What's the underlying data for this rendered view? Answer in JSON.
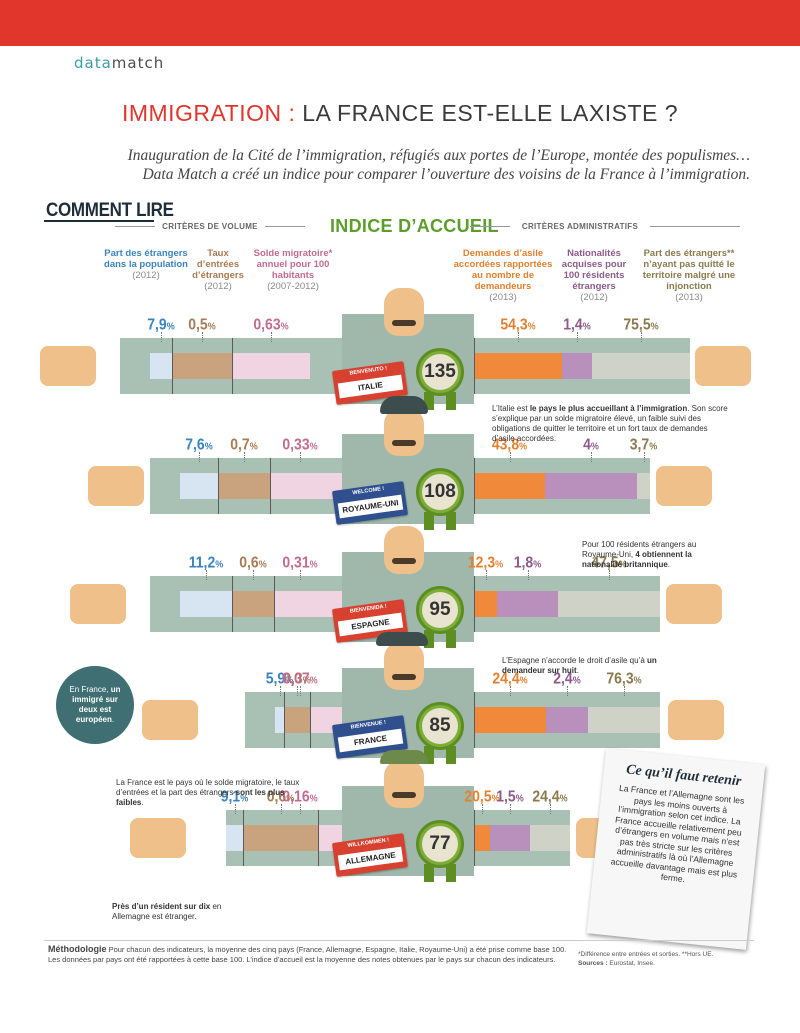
{
  "brand": {
    "part1": "data",
    "part2": "match"
  },
  "header": {
    "title_red": "IMMIGRATION :",
    "title_rest": " LA FRANCE EST-ELLE LAXISTE ?",
    "subtitle_line1": "Inauguration de la Cité de l’immigration, réfugiés aux portes de l’Europe, montée des populismes…",
    "subtitle_line2": "Data Match a créé un indice pour comparer l’ouverture des voisins de la France à l’immigration."
  },
  "legend": {
    "comment_lire": "COMMENT LIRE",
    "criteres_volume": "CRITÈRES DE VOLUME",
    "criteres_admin": "CRITÈRES ADMINISTRATIFS",
    "indice_title": "INDICE D’ACCUEIL"
  },
  "indicators": [
    {
      "label": "Part des étrangers dans la population",
      "year": "(2012)",
      "color": "#3b83c0"
    },
    {
      "label": "Taux d’entrées d’étrangers",
      "year": "(2012)",
      "color": "#a87b52"
    },
    {
      "label": "Solde migratoire* annuel pour 100 habitants",
      "year": "(2007-2012)",
      "color": "#c26b8e"
    },
    {
      "label": "Demandes d’asile accordées rapportées au nombre de demandeurs",
      "year": "(2013)",
      "color": "#e57f2e"
    },
    {
      "label": "Nationalités acquises pour 100 résidents étrangers",
      "year": "(2012)",
      "color": "#8d5a8a"
    },
    {
      "label": "Part des étrangers** n’ayant pas quitté le territoire malgré une injonction",
      "year": "(2013)",
      "color": "#8a7a4d"
    }
  ],
  "chart_data": {
    "type": "bar",
    "categories": [
      "Part des étrangers dans la population",
      "Taux d’entrées d’étrangers",
      "Solde migratoire annuel pour 100 habitants",
      "Demandes d’asile accordées rapportées au nombre de demandeurs",
      "Nationalités acquises pour 100 résidents étrangers",
      "Part des étrangers n’ayant pas quitté le territoire malgré une injonction"
    ],
    "units": "%",
    "series": [
      {
        "name": "ITALIE",
        "greeting": "BENVENUTO !",
        "index": 135,
        "values_text": [
          "7,9",
          "0,5",
          "0,63",
          "54,3",
          "1,4",
          "75,5"
        ],
        "values": [
          7.9,
          0.5,
          0.63,
          54.3,
          1.4,
          75.5
        ],
        "tag_color": "#d8402f"
      },
      {
        "name": "ROYAUME-UNI",
        "greeting": "WELCOME !",
        "index": 108,
        "values_text": [
          "7,6",
          "0,7",
          "0,33",
          "43,8",
          "4",
          "3,7"
        ],
        "values": [
          7.6,
          0.7,
          0.33,
          43.8,
          4,
          3.7
        ],
        "tag_color": "#2f4f8f"
      },
      {
        "name": "ESPAGNE",
        "greeting": "BIENVENIDA !",
        "index": 95,
        "values_text": [
          "11,2",
          "0,6",
          "0,31",
          "12,3",
          "1,8",
          "47,5"
        ],
        "values": [
          11.2,
          0.6,
          0.31,
          12.3,
          1.8,
          47.5
        ],
        "tag_color": "#d8402f"
      },
      {
        "name": "FRANCE",
        "greeting": "BIENVENUE !",
        "index": 85,
        "values_text": [
          "5,9",
          "0,3",
          "0,07",
          "24,4",
          "2,4",
          "76,3"
        ],
        "values": [
          5.9,
          0.3,
          0.07,
          24.4,
          2.4,
          76.3
        ],
        "tag_color": "#2f4f8f"
      },
      {
        "name": "ALLEMAGNE",
        "greeting": "WILLKOMMEN !",
        "index": 77,
        "values_text": [
          "9,1",
          "0,6",
          "0,16",
          "20,5",
          "1,5",
          "24,4"
        ],
        "values": [
          9.1,
          0.6,
          0.16,
          20.5,
          1.5,
          24.4
        ],
        "tag_color": "#d8402f"
      }
    ],
    "pct_sign": "%"
  },
  "notes": {
    "italie_pre": "L’Italie est ",
    "italie_bold": "le pays le plus accueillant à l’immigration",
    "italie_post": ". Son score s’explique par un solde migratoire élevé, un faible suivi des obligations de quitter le territoire et un fort taux de demandes d’asile accordées.",
    "ru_pre": "Pour 100 résidents étrangers au Royaume-Uni, ",
    "ru_bold": "4 obtiennent la nationalité britannique",
    "ru_post": ".",
    "espagne_pre": "L’Espagne n’accorde le droit d’asile qu’à ",
    "espagne_bold": "un demandeur sur huit",
    "espagne_post": ".",
    "circle_pre": "En France, ",
    "circle_bold": "un immigré sur deux est européen",
    "circle_post": ".",
    "france_pre": "La France est le pays où le solde migratoire, le taux d’entrées et la part des étrangers ",
    "france_bold": "sont les plus faibles",
    "france_post": ".",
    "allemagne_bold": "Près d’un résident sur dix",
    "allemagne_post": " en Allemagne est étranger."
  },
  "retenir": {
    "title": "Ce qu’il faut retenir",
    "text": "La France et l’Allemagne sont les pays les moins ouverts à l’immigration selon cet indice. La France accueille relativement peu d’étrangers en volume mais n’est pas très stricte sur les critères administratifs là où l’Allemagne accueille davantage mais est plus ferme."
  },
  "footer": {
    "methodo_label": "Méthodologie",
    "methodo_text": " Pour chacun des indicateurs, la moyenne des cinq pays (France, Allemagne, Espagne, Italie, Royaume-Uni) a été prise comme base 100. Les données par pays ont été rapportées à cette base 100. L’indice d’accueil est la moyenne des notes obtenues par le pays sur chacun des indicateurs.",
    "footnote": "*Différence entre entrées et sorties. **Hors UE.",
    "sources_label": "Sources :",
    "sources_text": " Eurostat, Insee."
  }
}
